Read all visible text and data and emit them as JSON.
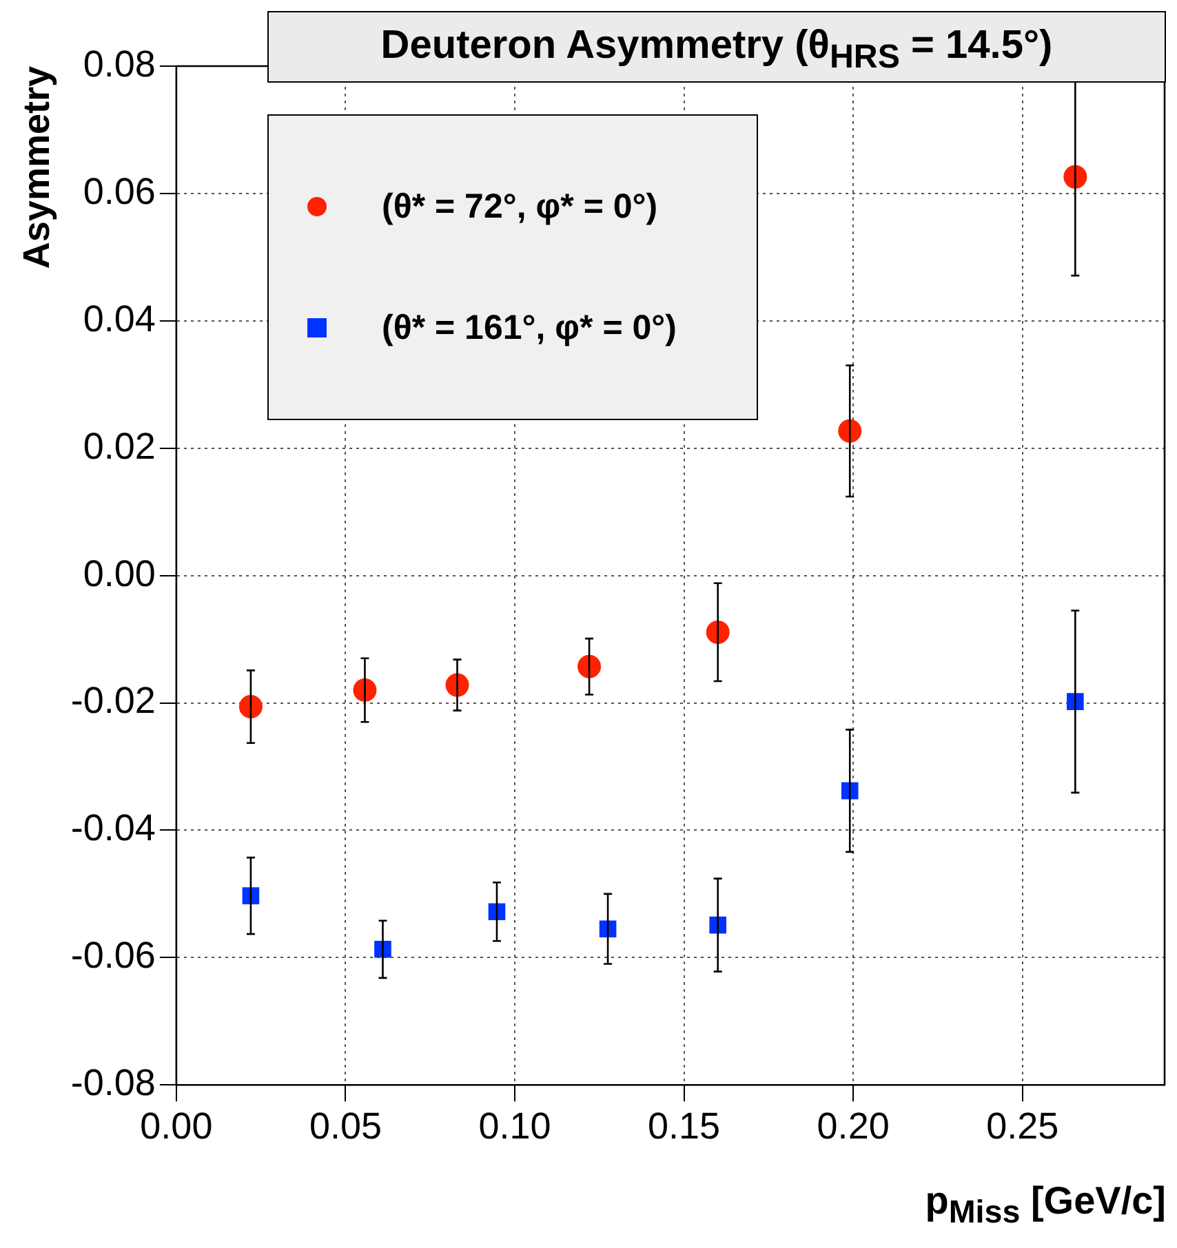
{
  "chart_data": {
    "type": "scatter",
    "title": "Deuteron Asymmetry (θ$_{HRS}$ = 14.5°)",
    "xlabel": "p$_{Miss}$ [GeV/c]",
    "ylabel": "Asymmetry",
    "xlim": [
      0,
      0.292
    ],
    "ylim": [
      -0.08,
      0.08
    ],
    "xticks": [
      {
        "value": 0,
        "label": "0.00"
      },
      0.05,
      {
        "value": 0.1,
        "label": "0.10"
      },
      0.15,
      {
        "value": 0.2,
        "label": "0.20"
      },
      0.25
    ],
    "yticks": [
      -0.08,
      -0.06,
      -0.04,
      -0.02,
      {
        "value": 0,
        "label": "0.00"
      },
      0.02,
      0.04,
      0.06,
      0.08
    ],
    "grid": true,
    "legend": "top left",
    "series": [
      {
        "name": "(θ* = 72°, φ* = 0°)",
        "color": "#ff2200",
        "marker": "circle",
        "x": [
          0.022,
          0.0557,
          0.083,
          0.122,
          0.16,
          0.199,
          0.2656
        ],
        "values": [
          -0.0206,
          -0.018,
          -0.0172,
          -0.0143,
          -0.0089,
          0.0227,
          0.0626
        ],
        "errors": [
          0.0057,
          0.005,
          0.004,
          0.0044,
          0.0077,
          0.0103,
          0.0155
        ]
      },
      {
        "name": "(θ* = 161°, φ* = 0°)",
        "color": "#0033ff",
        "marker": "square",
        "x": [
          0.022,
          0.061,
          0.0947,
          0.1275,
          0.16,
          0.199,
          0.2656
        ],
        "values": [
          -0.0503,
          -0.0587,
          -0.0528,
          -0.0555,
          -0.0549,
          -0.0338,
          -0.0198
        ],
        "errors": [
          0.006,
          0.0045,
          0.0046,
          0.0055,
          0.0073,
          0.0096,
          0.0143
        ]
      }
    ]
  }
}
